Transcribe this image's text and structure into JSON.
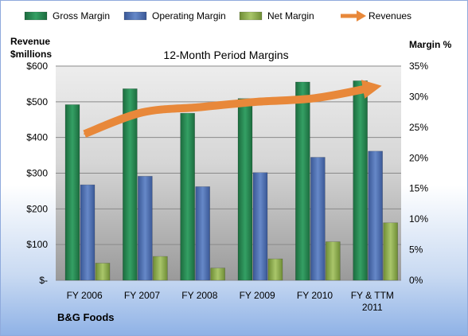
{
  "chart_data": {
    "type": "bar",
    "title": "12-Month Period Margins",
    "left_axis_label": [
      "Revenue",
      "$millions"
    ],
    "right_axis_label": "Margin %",
    "company_label": "B&G Foods",
    "categories": [
      [
        "FY 2006"
      ],
      [
        "FY 2007"
      ],
      [
        "FY 2008"
      ],
      [
        "FY 2009"
      ],
      [
        "FY 2010"
      ],
      [
        "FY & TTM",
        "2011"
      ]
    ],
    "left_ticks": [
      "$-",
      "$100",
      "$200",
      "$300",
      "$400",
      "$500",
      "$600"
    ],
    "right_ticks": [
      "0%",
      "5%",
      "10%",
      "15%",
      "20%",
      "25%",
      "30%",
      "35%"
    ],
    "ylim_left": [
      0,
      600
    ],
    "ylim_right": [
      0,
      35
    ],
    "legend_position": "top",
    "series": [
      {
        "name": "Gross Margin",
        "type": "bar",
        "axis": "right",
        "color": "#2e8b57",
        "values": [
          28.7,
          31.3,
          27.3,
          29.7,
          32.4,
          32.6
        ]
      },
      {
        "name": "Operating Margin",
        "type": "bar",
        "axis": "right",
        "color": "#4f6fb0",
        "values": [
          15.6,
          17.0,
          15.3,
          17.6,
          20.1,
          21.1
        ]
      },
      {
        "name": "Net Margin",
        "type": "bar",
        "axis": "right",
        "color": "#8fb04f",
        "values": [
          2.8,
          3.9,
          2.0,
          3.5,
          6.3,
          9.4
        ]
      },
      {
        "name": "Revenues",
        "type": "line",
        "axis": "left",
        "color": "#e8883a",
        "values": [
          410,
          470,
          485,
          500,
          510,
          540
        ]
      }
    ]
  }
}
